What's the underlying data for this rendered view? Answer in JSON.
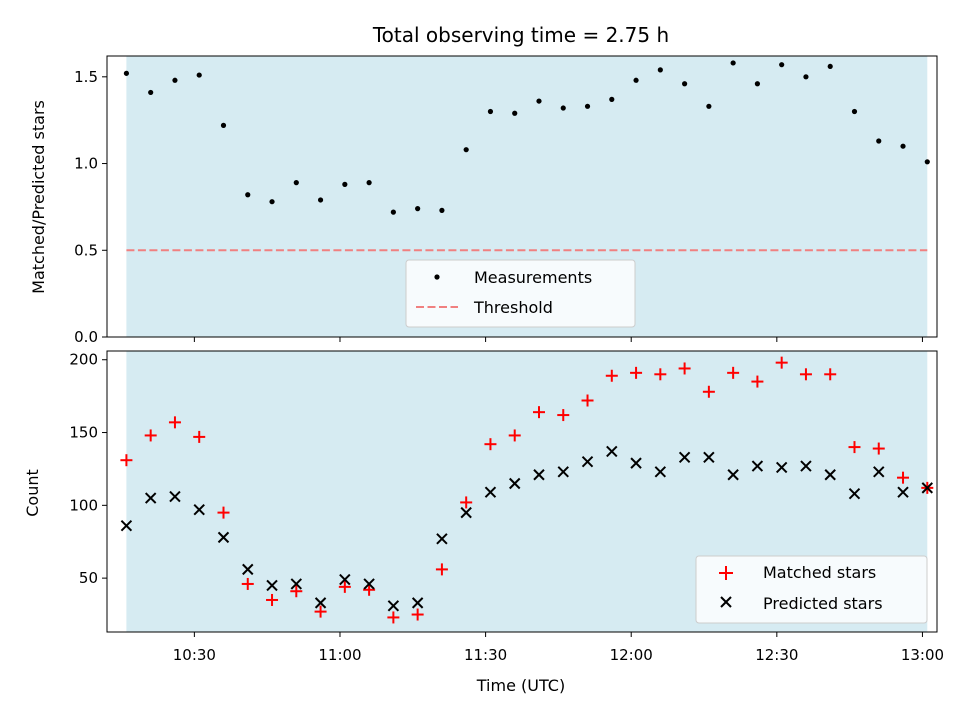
{
  "colors": {
    "band": "#add8e6",
    "threshold": "#f08080",
    "matched": "#ff0000",
    "predicted": "#000000",
    "measurement": "#000000"
  },
  "chart_data": [
    {
      "type": "scatter",
      "title": "Total observing time = 2.75 h",
      "xlabel": "",
      "ylabel": "Matched/Predicted stars",
      "xlim": [
        "10:12",
        "13:03"
      ],
      "ylim": [
        0,
        1.62
      ],
      "yticks": [
        0.0,
        0.5,
        1.0,
        1.5
      ],
      "ytick_labels": [
        "0.0",
        "0.5",
        "1.0",
        "1.5"
      ],
      "observing_window": [
        "10:16",
        "13:01"
      ],
      "threshold": 0.5,
      "legend": {
        "position": "bottom-center",
        "entries": [
          "Measurements",
          "Threshold"
        ]
      },
      "x": [
        "10:16",
        "10:21",
        "10:26",
        "10:31",
        "10:36",
        "10:41",
        "10:46",
        "10:51",
        "10:56",
        "11:01",
        "11:06",
        "11:11",
        "11:16",
        "11:21",
        "11:26",
        "11:31",
        "11:36",
        "11:41",
        "11:46",
        "11:51",
        "11:56",
        "12:01",
        "12:06",
        "12:11",
        "12:16",
        "12:21",
        "12:26",
        "12:31",
        "12:36",
        "12:41",
        "12:46",
        "12:51",
        "12:56",
        "13:01"
      ],
      "series": [
        {
          "name": "Measurements",
          "values": [
            1.52,
            1.41,
            1.48,
            1.51,
            1.22,
            0.82,
            0.78,
            0.89,
            0.79,
            0.88,
            0.89,
            0.72,
            0.74,
            0.73,
            1.08,
            1.3,
            1.29,
            1.36,
            1.32,
            1.33,
            1.37,
            1.48,
            1.54,
            1.46,
            1.33,
            1.58,
            1.46,
            1.57,
            1.5,
            1.56,
            1.3,
            1.13,
            1.1,
            1.01
          ]
        }
      ]
    },
    {
      "type": "scatter",
      "title": "",
      "xlabel": "Time (UTC)",
      "ylabel": "Count",
      "xlim": [
        "10:12",
        "13:03"
      ],
      "ylim": [
        13,
        206
      ],
      "yticks": [
        50,
        100,
        150,
        200
      ],
      "ytick_labels": [
        "50",
        "100",
        "150",
        "200"
      ],
      "xticks": [
        "10:30",
        "11:00",
        "11:30",
        "12:00",
        "12:30",
        "13:00"
      ],
      "observing_window": [
        "10:16",
        "13:01"
      ],
      "legend": {
        "position": "lower-right",
        "entries": [
          "Matched stars",
          "Predicted stars"
        ]
      },
      "x": [
        "10:16",
        "10:21",
        "10:26",
        "10:31",
        "10:36",
        "10:41",
        "10:46",
        "10:51",
        "10:56",
        "11:01",
        "11:06",
        "11:11",
        "11:16",
        "11:21",
        "11:26",
        "11:31",
        "11:36",
        "11:41",
        "11:46",
        "11:51",
        "11:56",
        "12:01",
        "12:06",
        "12:11",
        "12:16",
        "12:21",
        "12:26",
        "12:31",
        "12:36",
        "12:41",
        "12:46",
        "12:51",
        "12:56",
        "13:01"
      ],
      "series": [
        {
          "name": "Matched stars",
          "values": [
            131,
            148,
            157,
            147,
            95,
            46,
            35,
            41,
            27,
            44,
            42,
            23,
            25,
            56,
            102,
            142,
            148,
            164,
            162,
            172,
            189,
            191,
            190,
            194,
            178,
            191,
            185,
            198,
            190,
            190,
            140,
            139,
            119,
            112
          ]
        },
        {
          "name": "Predicted stars",
          "values": [
            86,
            105,
            106,
            97,
            78,
            56,
            45,
            46,
            33,
            49,
            46,
            31,
            33,
            77,
            95,
            109,
            115,
            121,
            123,
            130,
            137,
            129,
            123,
            133,
            133,
            121,
            127,
            126,
            127,
            121,
            108,
            123,
            109,
            112
          ]
        }
      ]
    }
  ]
}
